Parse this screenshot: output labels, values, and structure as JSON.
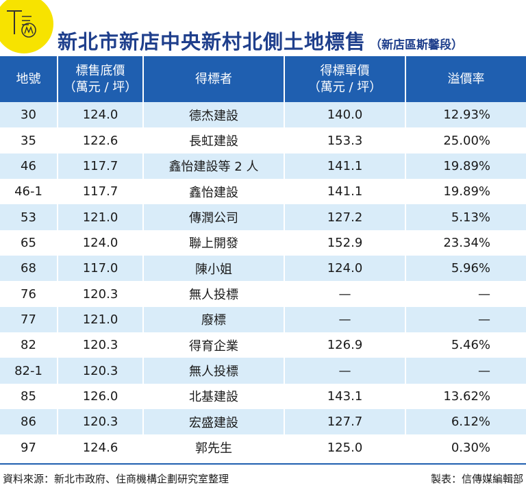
{
  "logo": {
    "text": "TCM"
  },
  "header": {
    "title": "新北市新店中央新村北側土地標售",
    "subtitle": "（新店區斯馨段）"
  },
  "table": {
    "columns": [
      {
        "line1": "地號",
        "line2": ""
      },
      {
        "line1": "標售底價",
        "line2": "（萬元 / 坪）"
      },
      {
        "line1": "得標者",
        "line2": ""
      },
      {
        "line1": "得標單價",
        "line2": "（萬元 / 坪）"
      },
      {
        "line1": "溢價率",
        "line2": ""
      }
    ],
    "rows": [
      {
        "lot": "30",
        "base": "124.0",
        "winner": "德杰建設",
        "price": "140.0",
        "premium": "12.93%"
      },
      {
        "lot": "35",
        "base": "122.6",
        "winner": "長虹建設",
        "price": "153.3",
        "premium": "25.00%"
      },
      {
        "lot": "46",
        "base": "117.7",
        "winner": "鑫怡建設等 2 人",
        "price": "141.1",
        "premium": "19.89%"
      },
      {
        "lot": "46-1",
        "base": "117.7",
        "winner": "鑫怡建設",
        "price": "141.1",
        "premium": "19.89%"
      },
      {
        "lot": "53",
        "base": "121.0",
        "winner": "傳潤公司",
        "price": "127.2",
        "premium": "5.13%"
      },
      {
        "lot": "65",
        "base": "124.0",
        "winner": "聯上開發",
        "price": "152.9",
        "premium": "23.34%"
      },
      {
        "lot": "68",
        "base": "117.0",
        "winner": "陳小姐",
        "price": "124.0",
        "premium": "5.96%"
      },
      {
        "lot": "76",
        "base": "120.3",
        "winner": "無人投標",
        "price": "—",
        "premium": "—"
      },
      {
        "lot": "77",
        "base": "121.0",
        "winner": "廢標",
        "price": "—",
        "premium": "—"
      },
      {
        "lot": "82",
        "base": "120.3",
        "winner": "得育企業",
        "price": "126.9",
        "premium": "5.46%"
      },
      {
        "lot": "82-1",
        "base": "120.3",
        "winner": "無人投標",
        "price": "—",
        "premium": "—"
      },
      {
        "lot": "85",
        "base": "126.0",
        "winner": "北基建設",
        "price": "143.1",
        "premium": "13.62%"
      },
      {
        "lot": "86",
        "base": "120.3",
        "winner": "宏盛建設",
        "price": "127.7",
        "premium": "6.12%"
      },
      {
        "lot": "97",
        "base": "124.6",
        "winner": "郭先生",
        "price": "125.0",
        "premium": "0.30%"
      }
    ]
  },
  "footer": {
    "source": "資料來源：新北市政府、住商機構企劃研究室整理",
    "credit": "製表：信傳媒編輯部"
  },
  "colors": {
    "header_bg": "#1f5fb0",
    "title": "#1f3f8c",
    "stripe": "#d9ecf9",
    "logo": "#f7e300"
  }
}
